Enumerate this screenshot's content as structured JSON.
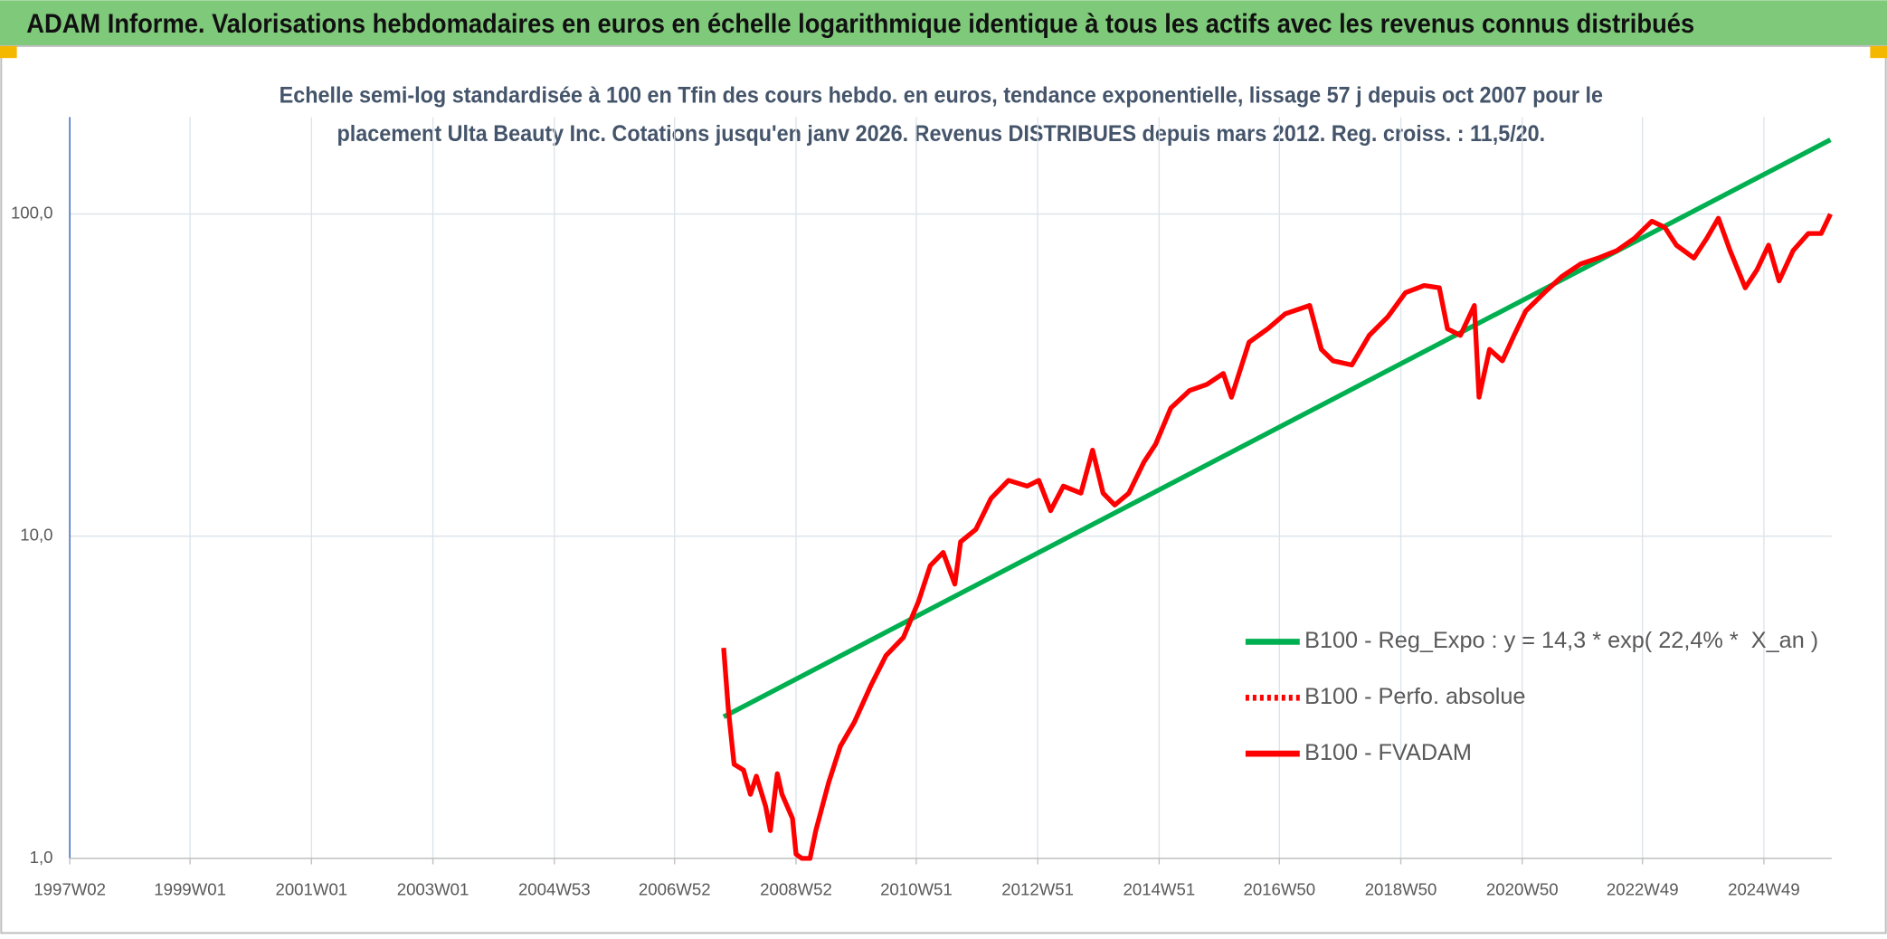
{
  "header": {
    "title": "ADAM Informe. Valorisations hebdomadaires en euros en échelle logarithmique identique à tous les actifs avec les revenus connus distribués"
  },
  "chart_data": {
    "type": "line",
    "title": [
      "Echelle semi-log standardisée à 100 en Tfin des cours hebdo. en euros, tendance exponentielle, lissage 57 j depuis oct 2007 pour le",
      "placement Ulta Beauty Inc. Cotations jusqu'en janv 2026. Revenus DISTRIBUES depuis mars 2012. Reg. croiss. : 11,5/20."
    ],
    "log_scale": true,
    "grid": true,
    "legend": "lower right",
    "xlim": [
      "1997W02",
      "2026W03"
    ],
    "xticks": [
      "1997W02",
      "1999W01",
      "2001W01",
      "2003W01",
      "2004W53",
      "2006W52",
      "2008W52",
      "2010W51",
      "2012W51",
      "2014W51",
      "2016W50",
      "2018W50",
      "2020W50",
      "2022W49",
      "2024W49"
    ],
    "ylim": [
      1,
      200
    ],
    "yticks": [
      {
        "value": 1,
        "label": "1,0"
      },
      {
        "value": 10,
        "label": "10,0"
      },
      {
        "value": 100,
        "label": "100,0"
      }
    ],
    "series": [
      {
        "name": "B100 - Reg_Expo : y = 14,3 * exp( 22,4% *  X_an )",
        "color": "#00b050",
        "line_style": "solid",
        "x": [
          "2007W42",
          "2026W02"
        ],
        "values": [
          2.75,
          170
        ]
      },
      {
        "name": "B100 - Perfo. absolue",
        "color": "#ff0000",
        "line_style": "dotted",
        "x": [],
        "values": []
      },
      {
        "name": "B100 - FVADAM",
        "color": "#ff0000",
        "line_style": "solid",
        "x": [
          "2007W42",
          "2007W46",
          "2007W51",
          "2008W07",
          "2008W13",
          "2008W18",
          "2008W26",
          "2008W30",
          "2008W36",
          "2008W40",
          "2008W49",
          "2008W52",
          "2009W05",
          "2009W12",
          "2009W17",
          "2009W28",
          "2009W38",
          "2009W50",
          "2010W12",
          "2010W25",
          "2010W40",
          "2011W01",
          "2011W11",
          "2011W22",
          "2011W32",
          "2011W37",
          "2011W50",
          "2012W11",
          "2012W26",
          "2012W42",
          "2012W52",
          "2013W10",
          "2013W21",
          "2013W36",
          "2013W46",
          "2014W03",
          "2014W13",
          "2014W25",
          "2014W38",
          "2014W48",
          "2015W09",
          "2015W25",
          "2015W40",
          "2016W02",
          "2016W09",
          "2016W24",
          "2016W40",
          "2017W03",
          "2017W24",
          "2017W34",
          "2017W44",
          "2018W08",
          "2018W23",
          "2018W39",
          "2019W02",
          "2019W18",
          "2019W31",
          "2019W38",
          "2019W49",
          "2020W09",
          "2020W13",
          "2020W22",
          "2020W33",
          "2020W43",
          "2021W01",
          "2021W17",
          "2021W32",
          "2021W48",
          "2022W11",
          "2022W27",
          "2022W42",
          "2023W05",
          "2023W16",
          "2023W26",
          "2023W41",
          "2023W52",
          "2024W10",
          "2024W20",
          "2024W33",
          "2024W43",
          "2025W01",
          "2025W10",
          "2025W22",
          "2025W35",
          "2025W46",
          "2026W02"
        ],
        "values": [
          4.5,
          2.9,
          1.96,
          1.88,
          1.58,
          1.8,
          1.45,
          1.22,
          1.83,
          1.58,
          1.33,
          1.03,
          1.0,
          1.0,
          1.22,
          1.72,
          2.23,
          2.65,
          3.43,
          4.26,
          4.85,
          6.28,
          8.1,
          8.9,
          7.1,
          9.6,
          10.5,
          13.1,
          14.9,
          14.3,
          14.9,
          12.0,
          14.3,
          13.6,
          18.5,
          13.6,
          12.5,
          13.6,
          17.0,
          19.3,
          25,
          28.3,
          29.6,
          32,
          27,
          40,
          44,
          49,
          52,
          38,
          35,
          34,
          42,
          48,
          57,
          60,
          59,
          44,
          42,
          52,
          27,
          38,
          35,
          42,
          50,
          57,
          64,
          70,
          73,
          77,
          84,
          95,
          91,
          80,
          73,
          84,
          97,
          77,
          59,
          67,
          80,
          62,
          77,
          87,
          87,
          100
        ]
      }
    ]
  }
}
